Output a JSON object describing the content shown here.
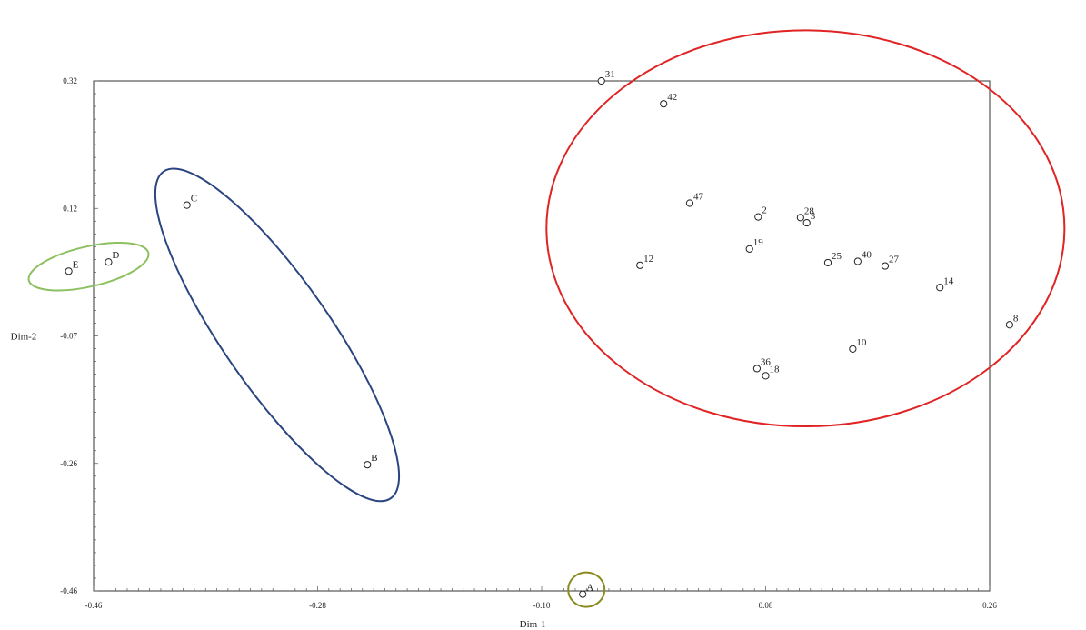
{
  "chart_data": {
    "type": "scatter",
    "xlabel": "Dim-1",
    "ylabel": "Dim-2",
    "xlim": [
      -0.46,
      0.26
    ],
    "ylim": [
      -0.46,
      0.32
    ],
    "xticks": [
      "-0.46",
      "-0.28",
      "-0.10",
      "0.08",
      "0.26"
    ],
    "yticks": [
      "0.32",
      "0.12",
      "-0.07",
      "-0.26",
      "-0.46"
    ],
    "grid": false,
    "points": [
      {
        "label": "31",
        "x": -0.052,
        "y": 0.32
      },
      {
        "label": "42",
        "x": -0.002,
        "y": 0.285
      },
      {
        "label": "47",
        "x": 0.019,
        "y": 0.133
      },
      {
        "label": "2",
        "x": 0.074,
        "y": 0.112
      },
      {
        "label": "28",
        "x": 0.108,
        "y": 0.111
      },
      {
        "label": "3",
        "x": 0.113,
        "y": 0.103
      },
      {
        "label": "19",
        "x": 0.067,
        "y": 0.063
      },
      {
        "label": "12",
        "x": -0.021,
        "y": 0.038
      },
      {
        "label": "25",
        "x": 0.13,
        "y": 0.042
      },
      {
        "label": "40",
        "x": 0.154,
        "y": 0.044
      },
      {
        "label": "27",
        "x": 0.176,
        "y": 0.037
      },
      {
        "label": "14",
        "x": 0.22,
        "y": 0.004
      },
      {
        "label": "8",
        "x": 0.276,
        "y": -0.053
      },
      {
        "label": "10",
        "x": 0.15,
        "y": -0.09
      },
      {
        "label": "36",
        "x": 0.073,
        "y": -0.12
      },
      {
        "label": "18",
        "x": 0.08,
        "y": -0.131
      },
      {
        "label": "C",
        "x": -0.385,
        "y": 0.13
      },
      {
        "label": "B",
        "x": -0.24,
        "y": -0.267
      },
      {
        "label": "D",
        "x": -0.448,
        "y": 0.043
      },
      {
        "label": "E",
        "x": -0.48,
        "y": 0.029
      },
      {
        "label": "A",
        "x": -0.067,
        "y": -0.465
      }
    ],
    "clusters": [
      {
        "color": "#e02424",
        "members": [
          "31",
          "42",
          "47",
          "2",
          "28",
          "3",
          "19",
          "12",
          "25",
          "40",
          "27",
          "14",
          "8",
          "10",
          "36",
          "18"
        ]
      },
      {
        "color": "#2b4580",
        "members": [
          "C",
          "B"
        ]
      },
      {
        "color": "#8cc060",
        "members": [
          "D",
          "E"
        ]
      },
      {
        "color": "#8a8a1e",
        "members": [
          "A"
        ]
      }
    ]
  }
}
